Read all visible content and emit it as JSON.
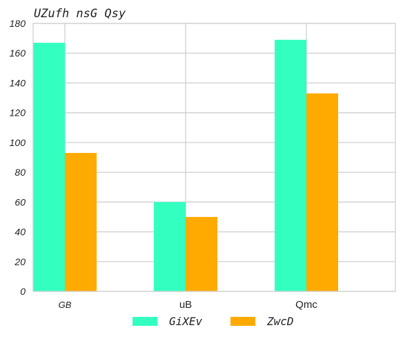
{
  "chart_data": {
    "type": "bar",
    "title": "UZufh nsG Qsy",
    "xlabel": "",
    "ylabel": "",
    "categories": [
      "GB",
      "uB",
      "Qmc"
    ],
    "series": [
      {
        "name": "GiXEv",
        "color": "#33ffc1",
        "values": [
          167,
          60,
          169
        ]
      },
      {
        "name": "ZwcD",
        "color": "#ffaa00",
        "values": [
          93,
          50,
          133
        ]
      }
    ],
    "ylim": [
      0,
      180
    ],
    "yticks": [
      0,
      20,
      40,
      60,
      80,
      100,
      120,
      140,
      160,
      180
    ],
    "grid": true,
    "legend_position": "bottom-center"
  }
}
